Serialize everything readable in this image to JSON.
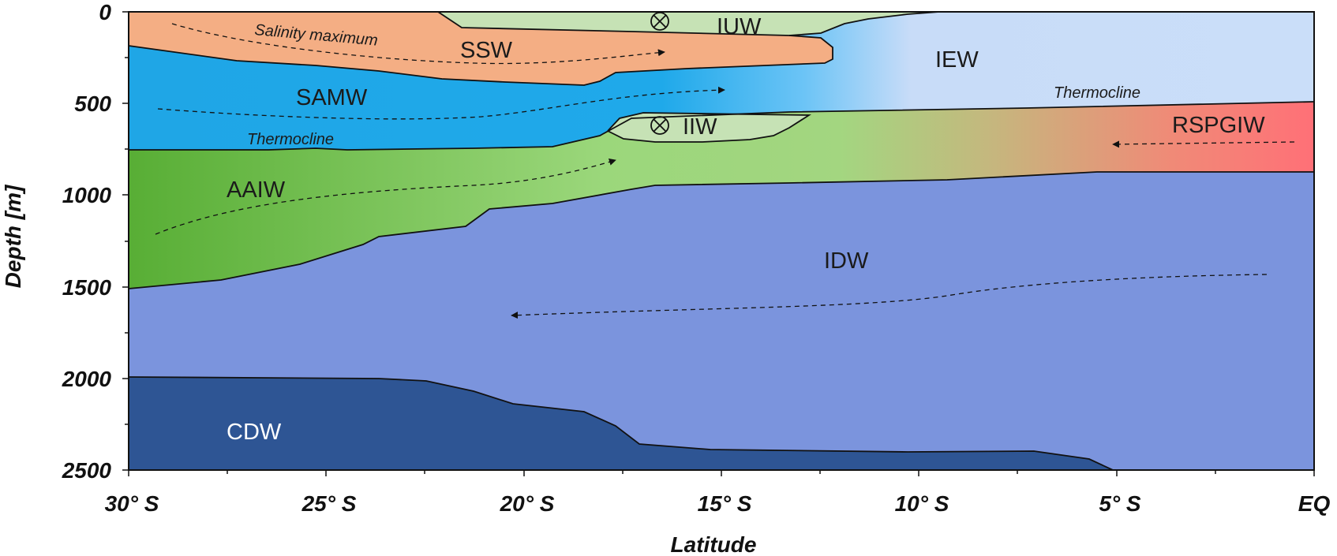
{
  "axes": {
    "x_title": "Latitude",
    "y_title": "Depth [m]",
    "x_ticks": [
      "30° S",
      "25° S",
      "20° S",
      "15° S",
      "10° S",
      "5° S",
      "EQ"
    ],
    "y_ticks": [
      "0",
      "500",
      "1000",
      "1500",
      "2000",
      "2500"
    ]
  },
  "water_masses": {
    "iuw": "IUW",
    "ssw": "SSW",
    "iew": "IEW",
    "samw": "SAMW",
    "iiw": "IIW",
    "rspgiw": "RSPGIW",
    "aaiw": "AAIW",
    "idw": "IDW",
    "cdw": "CDW"
  },
  "annotations": {
    "salinity_maximum": "Salinity maximum",
    "thermocline_left": "Thermocline",
    "thermocline_right": "Thermocline"
  },
  "symbols": {
    "into_page_mark": "into-page-cross-circle"
  },
  "colors": {
    "iuw": "#c6e2b5",
    "ssw": "#f4ae84",
    "iew": "#cadef9",
    "samw": "#1ea8e8",
    "iiw": "#c6e2b5",
    "rspgiw": "#fd7375",
    "aaiw": "#5db23b",
    "idw": "#7b94dd",
    "cdw": "#2e5594"
  }
}
